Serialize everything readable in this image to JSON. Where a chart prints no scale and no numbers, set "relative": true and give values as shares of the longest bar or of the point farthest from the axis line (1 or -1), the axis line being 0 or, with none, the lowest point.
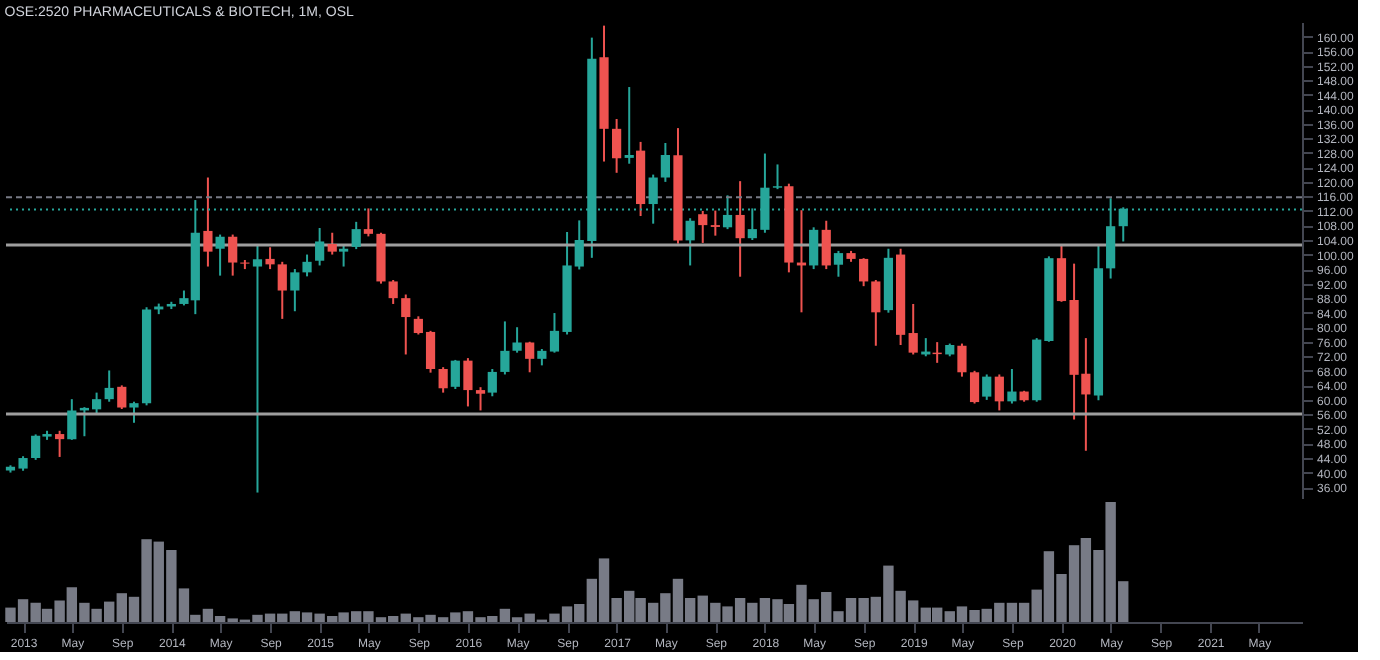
{
  "chart_data": [
    {
      "type": "candlestick",
      "title": "OSE:2520 PHARMACEUTICALS & BIOTECH, 1M, OSL",
      "x": [
        "2012-12",
        "2013-01",
        "2013-02",
        "2013-03",
        "2013-04",
        "2013-05",
        "2013-06",
        "2013-07",
        "2013-08",
        "2013-09",
        "2013-10",
        "2013-11",
        "2013-12",
        "2014-01",
        "2014-02",
        "2014-03",
        "2014-04",
        "2014-05",
        "2014-06",
        "2014-07",
        "2014-08",
        "2014-09",
        "2014-10",
        "2014-11",
        "2014-12",
        "2015-01",
        "2015-02",
        "2015-03",
        "2015-04",
        "2015-05",
        "2015-06",
        "2015-07",
        "2015-08",
        "2015-09",
        "2015-10",
        "2015-11",
        "2015-12",
        "2016-01",
        "2016-02",
        "2016-03",
        "2016-04",
        "2016-05",
        "2016-06",
        "2016-07",
        "2016-08",
        "2016-09",
        "2016-10",
        "2016-11",
        "2016-12",
        "2017-01",
        "2017-02",
        "2017-03",
        "2017-04",
        "2017-05",
        "2017-06",
        "2017-07",
        "2017-08",
        "2017-09",
        "2017-10",
        "2017-11",
        "2017-12",
        "2018-01",
        "2018-02",
        "2018-03",
        "2018-04",
        "2018-05",
        "2018-06",
        "2018-07",
        "2018-08",
        "2018-09",
        "2018-10",
        "2018-11",
        "2018-12",
        "2019-01",
        "2019-02",
        "2019-03",
        "2019-04",
        "2019-05",
        "2019-06",
        "2019-07",
        "2019-08",
        "2019-09",
        "2019-10",
        "2019-11",
        "2019-12",
        "2020-01",
        "2020-02",
        "2020-03",
        "2020-04",
        "2020-05",
        "2020-06"
      ],
      "ohlc": [
        [
          40.6,
          42,
          40,
          41.6
        ],
        [
          41.1,
          44.5,
          40.5,
          44
        ],
        [
          44,
          50.5,
          43.5,
          50.1
        ],
        [
          49.9,
          51.5,
          49,
          50.6
        ],
        [
          50.6,
          51.5,
          44.3,
          49.2
        ],
        [
          49.2,
          60.2,
          49,
          57.1
        ],
        [
          57.1,
          58,
          50,
          57.8
        ],
        [
          57.4,
          62,
          56,
          60.2
        ],
        [
          60.2,
          68.1,
          59.5,
          63.3
        ],
        [
          63.6,
          64,
          57.5,
          57.9
        ],
        [
          57.9,
          59.5,
          53.7,
          59.1
        ],
        [
          59.1,
          85.5,
          58.5,
          84.9
        ],
        [
          84.9,
          86.5,
          83.6,
          85.7
        ],
        [
          85.7,
          87,
          85,
          86.4
        ],
        [
          86.4,
          90.1,
          86,
          88
        ],
        [
          87.4,
          115,
          83.6,
          106
        ],
        [
          106.5,
          121.2,
          96.7,
          100.8
        ],
        [
          101.6,
          105.5,
          94.2,
          104.9
        ],
        [
          104.9,
          105.5,
          94.2,
          97.8
        ],
        [
          97.8,
          98.5,
          96,
          97.5
        ],
        [
          96.7,
          102.4,
          34.5,
          98.7
        ],
        [
          98.8,
          102,
          96,
          97.3
        ],
        [
          97.3,
          98,
          82.3,
          90.1
        ],
        [
          90.1,
          96,
          84.4,
          95.1
        ],
        [
          95.1,
          100,
          94,
          98
        ],
        [
          98.3,
          107.3,
          97,
          103.6
        ],
        [
          102.9,
          106,
          100,
          100.8
        ],
        [
          100.8,
          102.5,
          96.7,
          101.6
        ],
        [
          102.1,
          109,
          101.5,
          107
        ],
        [
          107,
          112.7,
          105,
          105.7
        ],
        [
          105.7,
          106,
          92,
          92.6
        ],
        [
          92.6,
          93,
          86.4,
          88
        ],
        [
          88,
          89,
          72.5,
          82.8
        ],
        [
          82.3,
          83,
          78,
          78.4
        ],
        [
          78.7,
          79,
          67.5,
          68.5
        ],
        [
          68.5,
          69,
          62,
          63.2
        ],
        [
          63.6,
          71,
          63,
          70.8
        ],
        [
          70.8,
          71.5,
          58.2,
          62.7
        ],
        [
          62.7,
          63.5,
          57.1,
          61.7
        ],
        [
          62,
          68.5,
          61,
          67.7
        ],
        [
          67.7,
          81.6,
          67,
          73.5
        ],
        [
          73.5,
          80,
          73,
          75.8
        ],
        [
          75.8,
          76,
          67.6,
          71.3
        ],
        [
          71.3,
          74,
          69.5,
          73.5
        ],
        [
          73.3,
          83.9,
          73,
          79
        ],
        [
          78.7,
          106.2,
          78,
          97
        ],
        [
          96.7,
          109.4,
          95.9,
          104
        ],
        [
          103.7,
          159.7,
          99.1,
          153.9
        ],
        [
          154.3,
          163,
          125.6,
          134.6
        ],
        [
          134.6,
          137.3,
          122.5,
          126.5
        ],
        [
          126.6,
          146.1,
          125,
          127.4
        ],
        [
          128.6,
          131,
          110.6,
          113.9
        ],
        [
          113.9,
          122,
          108.5,
          121.2
        ],
        [
          121.2,
          130.7,
          120,
          127.4
        ],
        [
          127.3,
          134.8,
          103,
          103.9
        ],
        [
          103.9,
          110,
          97,
          109.3
        ],
        [
          111.1,
          112,
          103.2,
          108.1
        ],
        [
          108.1,
          112.1,
          105.2,
          107.6
        ],
        [
          107.5,
          116.3,
          107,
          110.9
        ],
        [
          110.9,
          120.2,
          93.9,
          104.5
        ],
        [
          104.5,
          112.7,
          104,
          107
        ],
        [
          106.8,
          127.8,
          106,
          118.4
        ],
        [
          118.4,
          124.8,
          118,
          118.8
        ],
        [
          118.8,
          119.5,
          95.1,
          97.8
        ],
        [
          97.8,
          112.2,
          84.1,
          97
        ],
        [
          97,
          107.5,
          96,
          106.8
        ],
        [
          106.8,
          109.3,
          96,
          97
        ],
        [
          97.2,
          101,
          93.9,
          100.4
        ],
        [
          100.4,
          101,
          98,
          98.8
        ],
        [
          98.8,
          99,
          91.3,
          92.6
        ],
        [
          92.6,
          93,
          74.9,
          84.1
        ],
        [
          84.7,
          101.6,
          84,
          99.1
        ],
        [
          100,
          101.6,
          75.1,
          77.9
        ],
        [
          78.4,
          86.4,
          72.5,
          73
        ],
        [
          72.5,
          77,
          72,
          73.3
        ],
        [
          73,
          75.9,
          70.2,
          72.6
        ],
        [
          72.5,
          75.5,
          72,
          75.1
        ],
        [
          74.9,
          75.5,
          66.4,
          67.6
        ],
        [
          67.6,
          68,
          59,
          59.4
        ],
        [
          60.9,
          67,
          60,
          66.4
        ],
        [
          66.4,
          67,
          57.1,
          59.6
        ],
        [
          59.6,
          68.5,
          59,
          62.3
        ],
        [
          62.3,
          62.5,
          59.5,
          59.9
        ],
        [
          59.9,
          77,
          59.5,
          76.6
        ],
        [
          76.2,
          99.5,
          76,
          99
        ],
        [
          99,
          102.4,
          87,
          87.2
        ],
        [
          87.5,
          97.5,
          54.6,
          66.9
        ],
        [
          67.2,
          77,
          46,
          61.5
        ],
        [
          61.2,
          102.7,
          59.9,
          96.2
        ],
        [
          96.2,
          115.5,
          93.4,
          107.8
        ],
        [
          107.8,
          113,
          103.6,
          112.6
        ]
      ],
      "colors": [
        "#26a69a",
        "#26a69a",
        "#26a69a",
        "#26a69a",
        "#ef5350",
        "#26a69a",
        "#26a69a",
        "#26a69a",
        "#26a69a",
        "#ef5350",
        "#26a69a",
        "#26a69a",
        "#26a69a",
        "#26a69a",
        "#26a69a",
        "#26a69a",
        "#ef5350",
        "#26a69a",
        "#ef5350",
        "#ef5350",
        "#26a69a",
        "#ef5350",
        "#ef5350",
        "#26a69a",
        "#26a69a",
        "#26a69a",
        "#ef5350",
        "#26a69a",
        "#26a69a",
        "#ef5350",
        "#ef5350",
        "#ef5350",
        "#ef5350",
        "#ef5350",
        "#ef5350",
        "#ef5350",
        "#26a69a",
        "#ef5350",
        "#ef5350",
        "#26a69a",
        "#26a69a",
        "#26a69a",
        "#ef5350",
        "#26a69a",
        "#26a69a",
        "#26a69a",
        "#26a69a",
        "#26a69a",
        "#ef5350",
        "#ef5350",
        "#26a69a",
        "#ef5350",
        "#26a69a",
        "#26a69a",
        "#ef5350",
        "#26a69a",
        "#ef5350",
        "#ef5350",
        "#26a69a",
        "#ef5350",
        "#26a69a",
        "#26a69a",
        "#26a69a",
        "#ef5350",
        "#ef5350",
        "#26a69a",
        "#ef5350",
        "#26a69a",
        "#ef5350",
        "#ef5350",
        "#ef5350",
        "#26a69a",
        "#ef5350",
        "#ef5350",
        "#26a69a",
        "#ef5350",
        "#26a69a",
        "#ef5350",
        "#ef5350",
        "#26a69a",
        "#ef5350",
        "#26a69a",
        "#ef5350",
        "#26a69a",
        "#26a69a",
        "#ef5350",
        "#ef5350",
        "#ef5350",
        "#26a69a",
        "#26a69a",
        "#26a69a"
      ],
      "xlim": [
        "2012-11-20",
        "2021-08-15"
      ],
      "ylim": [
        33,
        164
      ],
      "tick_labels": "y",
      "yticks": [
        {
          "value": 36,
          "label": "36.00"
        },
        {
          "value": 40,
          "label": "40.00"
        },
        {
          "value": 44,
          "label": "44.00"
        },
        {
          "value": 48,
          "label": "48.00"
        },
        {
          "value": 52,
          "label": "52.00"
        },
        {
          "value": 56,
          "label": "56.00"
        },
        {
          "value": 60,
          "label": "60.00"
        },
        {
          "value": 64,
          "label": "64.00"
        },
        {
          "value": 68,
          "label": "68.00"
        },
        {
          "value": 72,
          "label": "72.00"
        },
        {
          "value": 76,
          "label": "76.00"
        },
        {
          "value": 80,
          "label": "80.00"
        },
        {
          "value": 84,
          "label": "84.00"
        },
        {
          "value": 88,
          "label": "88.00"
        },
        {
          "value": 92,
          "label": "92.00"
        },
        {
          "value": 96,
          "label": "96.00"
        },
        {
          "value": 100,
          "label": "100.00"
        },
        {
          "value": 104,
          "label": "104.00"
        },
        {
          "value": 108,
          "label": "108.00"
        },
        {
          "value": 112,
          "label": "112.00"
        },
        {
          "value": 116,
          "label": "116.00"
        },
        {
          "value": 120,
          "label": "120.00"
        },
        {
          "value": 124,
          "label": "124.00"
        },
        {
          "value": 128,
          "label": "128.00"
        },
        {
          "value": 132,
          "label": "132.00"
        },
        {
          "value": 136,
          "label": "136.00"
        },
        {
          "value": 140,
          "label": "140.00"
        },
        {
          "value": 144,
          "label": "144.00"
        },
        {
          "value": 148,
          "label": "148.00"
        },
        {
          "value": 152,
          "label": "152.00"
        },
        {
          "value": 156,
          "label": "156.00"
        },
        {
          "value": 160,
          "label": "160.00"
        }
      ],
      "ref_lines": [
        {
          "axis": "y",
          "value": 102.6,
          "color": "#9e9e9e",
          "line_style": "solid"
        },
        {
          "axis": "y",
          "value": 56.1,
          "color": "#9e9e9e",
          "line_style": "solid"
        },
        {
          "axis": "y",
          "value": 115.8,
          "color": "#787b86",
          "line_style": "dashed"
        },
        {
          "axis": "y",
          "value": 112.4,
          "color": "#26a69a",
          "line_style": "dotted"
        }
      ],
      "grid": false,
      "legend": false
    },
    {
      "type": "bar",
      "relative": true,
      "color": "#787b86",
      "tick_labels": "x",
      "xlim": [
        "2012-11-20",
        "2021-08-15"
      ],
      "xticks": [
        {
          "value": "2013-01",
          "label": "2013"
        },
        {
          "value": "2013-05",
          "label": "May"
        },
        {
          "value": "2013-09",
          "label": "Sep"
        },
        {
          "value": "2014-01",
          "label": "2014"
        },
        {
          "value": "2014-05",
          "label": "May"
        },
        {
          "value": "2014-09",
          "label": "Sep"
        },
        {
          "value": "2015-01",
          "label": "2015"
        },
        {
          "value": "2015-05",
          "label": "May"
        },
        {
          "value": "2015-09",
          "label": "Sep"
        },
        {
          "value": "2016-01",
          "label": "2016"
        },
        {
          "value": "2016-05",
          "label": "May"
        },
        {
          "value": "2016-09",
          "label": "Sep"
        },
        {
          "value": "2017-01",
          "label": "2017"
        },
        {
          "value": "2017-05",
          "label": "May"
        },
        {
          "value": "2017-09",
          "label": "Sep"
        },
        {
          "value": "2018-01",
          "label": "2018"
        },
        {
          "value": "2018-05",
          "label": "May"
        },
        {
          "value": "2018-09",
          "label": "Sep"
        },
        {
          "value": "2019-01",
          "label": "2019"
        },
        {
          "value": "2019-05",
          "label": "May"
        },
        {
          "value": "2019-09",
          "label": "Sep"
        },
        {
          "value": "2020-01",
          "label": "2020"
        },
        {
          "value": "2020-05",
          "label": "May"
        },
        {
          "value": "2020-09",
          "label": "Sep"
        },
        {
          "value": "2021-01",
          "label": "2021"
        },
        {
          "value": "2021-05",
          "label": "May"
        }
      ],
      "x": [
        "2012-12",
        "2013-01",
        "2013-02",
        "2013-03",
        "2013-04",
        "2013-05",
        "2013-06",
        "2013-07",
        "2013-08",
        "2013-09",
        "2013-10",
        "2013-11",
        "2013-12",
        "2014-01",
        "2014-02",
        "2014-03",
        "2014-04",
        "2014-05",
        "2014-06",
        "2014-07",
        "2014-08",
        "2014-09",
        "2014-10",
        "2014-11",
        "2014-12",
        "2015-01",
        "2015-02",
        "2015-03",
        "2015-04",
        "2015-05",
        "2015-06",
        "2015-07",
        "2015-08",
        "2015-09",
        "2015-10",
        "2015-11",
        "2015-12",
        "2016-01",
        "2016-02",
        "2016-03",
        "2016-04",
        "2016-05",
        "2016-06",
        "2016-07",
        "2016-08",
        "2016-09",
        "2016-10",
        "2016-11",
        "2016-12",
        "2017-01",
        "2017-02",
        "2017-03",
        "2017-04",
        "2017-05",
        "2017-06",
        "2017-07",
        "2017-08",
        "2017-09",
        "2017-10",
        "2017-11",
        "2017-12",
        "2018-01",
        "2018-02",
        "2018-03",
        "2018-04",
        "2018-05",
        "2018-06",
        "2018-07",
        "2018-08",
        "2018-09",
        "2018-10",
        "2018-11",
        "2018-12",
        "2019-01",
        "2019-02",
        "2019-03",
        "2019-04",
        "2019-05",
        "2019-06",
        "2019-07",
        "2019-08",
        "2019-09",
        "2019-10",
        "2019-11",
        "2019-12",
        "2020-01",
        "2020-02",
        "2020-03",
        "2020-04",
        "2020-05",
        "2020-06"
      ],
      "values": [
        0.12,
        0.19,
        0.16,
        0.11,
        0.18,
        0.29,
        0.16,
        0.11,
        0.17,
        0.24,
        0.21,
        0.69,
        0.67,
        0.6,
        0.28,
        0.06,
        0.11,
        0.05,
        0.03,
        0.02,
        0.06,
        0.07,
        0.07,
        0.09,
        0.08,
        0.07,
        0.05,
        0.08,
        0.09,
        0.09,
        0.04,
        0.05,
        0.07,
        0.04,
        0.06,
        0.04,
        0.08,
        0.09,
        0.04,
        0.05,
        0.11,
        0.04,
        0.07,
        0.02,
        0.07,
        0.13,
        0.15,
        0.36,
        0.53,
        0.2,
        0.26,
        0.2,
        0.16,
        0.24,
        0.36,
        0.2,
        0.22,
        0.16,
        0.13,
        0.2,
        0.16,
        0.2,
        0.19,
        0.15,
        0.31,
        0.19,
        0.25,
        0.09,
        0.2,
        0.2,
        0.21,
        0.47,
        0.26,
        0.18,
        0.12,
        0.12,
        0.09,
        0.13,
        0.1,
        0.11,
        0.16,
        0.16,
        0.16,
        0.27,
        0.59,
        0.4,
        0.64,
        0.7,
        0.6,
        1,
        0.34
      ]
    }
  ]
}
